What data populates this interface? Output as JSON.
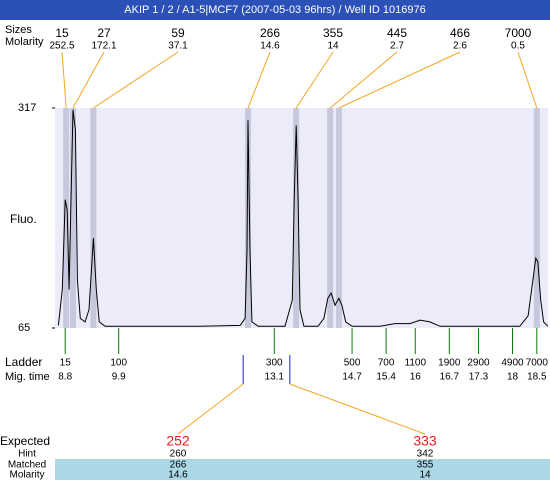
{
  "title": "AKIP 1 / 2 / A1-5|MCF7 (2007-05-03 96hrs) / Well ID 1016976",
  "chart_data": {
    "type": "electropherogram",
    "y_label": "Fluo.",
    "ylim": [
      65,
      317
    ],
    "yticks": [
      65,
      317
    ],
    "xlim": [
      8.59,
      18.73
    ],
    "trace": {
      "x": [
        8.66,
        8.74,
        8.8,
        8.84,
        8.88,
        8.92,
        8.96,
        9.01,
        9.05,
        9.11,
        9.21,
        9.29,
        9.38,
        9.44,
        9.5,
        9.62,
        11.57,
        12.4,
        12.5,
        12.54,
        12.56,
        12.6,
        12.64,
        12.77,
        13.32,
        13.47,
        13.51,
        13.55,
        13.59,
        13.63,
        13.71,
        14.0,
        14.12,
        14.2,
        14.27,
        14.35,
        14.43,
        14.49,
        14.57,
        14.7,
        15.27,
        15.58,
        15.89,
        16.1,
        16.3,
        16.51,
        18.15,
        18.32,
        18.42,
        18.48,
        18.52,
        18.58,
        18.64,
        18.73
      ],
      "y": [
        68,
        109,
        212,
        200,
        109,
        212,
        315,
        292,
        120,
        76,
        72,
        86,
        168,
        109,
        72,
        67,
        67,
        68,
        76,
        154,
        303,
        154,
        72,
        67,
        67,
        97,
        212,
        297,
        212,
        86,
        67,
        67,
        76,
        99,
        105,
        91,
        99,
        91,
        72,
        67,
        67,
        70,
        70,
        74,
        72,
        67,
        67,
        79,
        120,
        145,
        141,
        97,
        72,
        67
      ]
    },
    "peaks": {
      "size_label": "Sizes",
      "molarity_label": "Molarity",
      "sizes": [
        15,
        27,
        59,
        266,
        355,
        445,
        466,
        7000
      ],
      "molarities": [
        252.5,
        172.1,
        37.1,
        14.6,
        14,
        2.7,
        2.6,
        0.5
      ],
      "x": [
        8.82,
        8.96,
        9.38,
        12.56,
        13.55,
        14.25,
        14.43,
        18.5
      ]
    },
    "ladder": {
      "label": "Ladder",
      "time_label": "Mig. time",
      "sizes": [
        15,
        100,
        300,
        500,
        700,
        1100,
        1900,
        2900,
        4900,
        7000
      ],
      "times": [
        8.8,
        9.9,
        13.1,
        14.7,
        15.4,
        16,
        16.7,
        17.3,
        18,
        18.5
      ]
    },
    "expected": {
      "expected_label": "Expected",
      "hint_label": "Hint",
      "matched_label": "Matched",
      "molarity_label": "Molarity",
      "expected": [
        252,
        333
      ],
      "hint": [
        260,
        342
      ],
      "matched": [
        266,
        355
      ],
      "molarity": [
        14.6,
        14
      ],
      "x": [
        12.46,
        13.42
      ]
    }
  }
}
